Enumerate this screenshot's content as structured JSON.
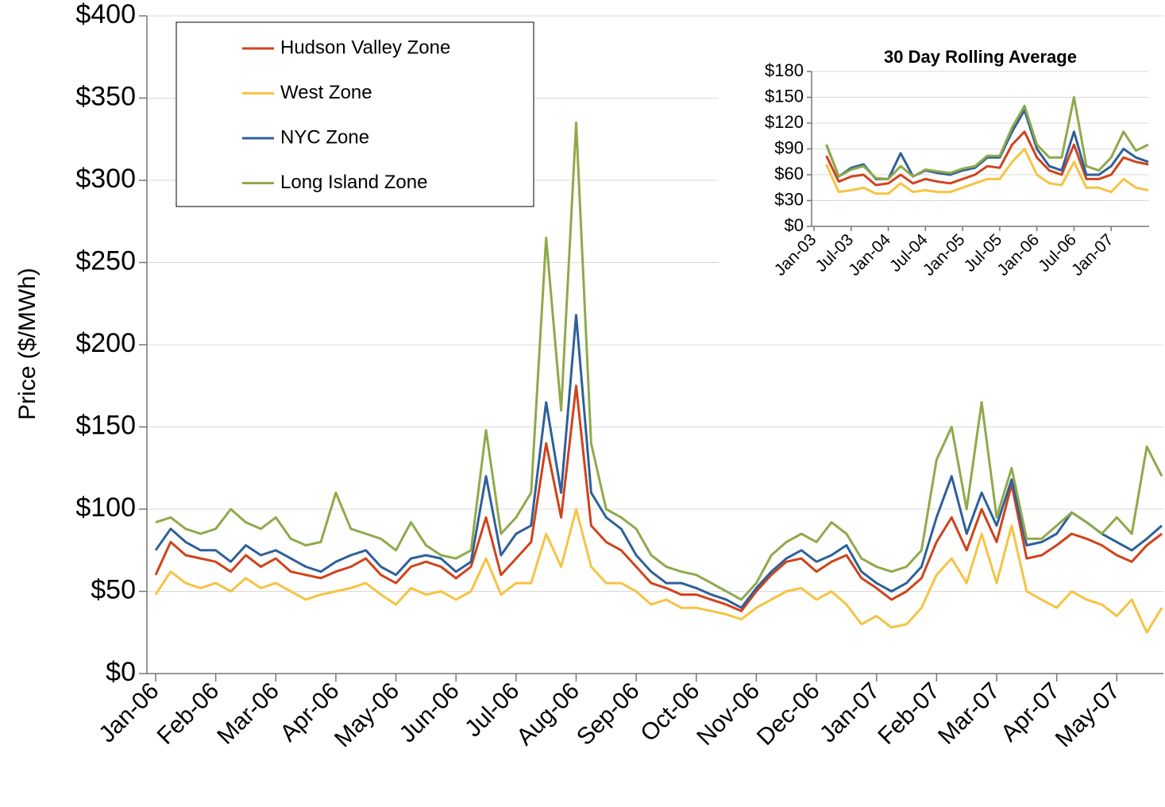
{
  "chart_data": [
    {
      "type": "line",
      "ylabel": "Price ($/MWh)",
      "legend": "top-left",
      "grid": true,
      "categories": [
        "Jan-06",
        null,
        null,
        null,
        "Feb-06",
        null,
        null,
        null,
        "Mar-06",
        null,
        null,
        null,
        "Apr-06",
        null,
        null,
        null,
        "May-06",
        null,
        null,
        null,
        "Jun-06",
        null,
        null,
        null,
        "Jul-06",
        null,
        null,
        null,
        "Aug-06",
        null,
        null,
        null,
        "Sep-06",
        null,
        null,
        null,
        "Oct-06",
        null,
        null,
        null,
        "Nov-06",
        null,
        null,
        null,
        "Dec-06",
        null,
        null,
        null,
        "Jan-07",
        null,
        null,
        null,
        "Feb-07",
        null,
        null,
        null,
        "Mar-07",
        null,
        null,
        null,
        "Apr-07",
        null,
        null,
        null,
        "May-07",
        null,
        null,
        null
      ],
      "ylim": [
        0,
        400
      ],
      "yticks": [
        {
          "value": 0,
          "label": "$0"
        },
        {
          "value": 50,
          "label": "$50"
        },
        {
          "value": 100,
          "label": "$100"
        },
        {
          "value": 150,
          "label": "$150"
        },
        {
          "value": 200,
          "label": "$200"
        },
        {
          "value": 250,
          "label": "$250"
        },
        {
          "value": 300,
          "label": "$300"
        },
        {
          "value": 350,
          "label": "$350"
        },
        {
          "value": 400,
          "label": "$400"
        }
      ],
      "series": [
        {
          "name": "Hudson Valley Zone",
          "color": "#d0431c",
          "values": [
            60,
            80,
            72,
            70,
            68,
            62,
            72,
            65,
            70,
            62,
            60,
            58,
            62,
            65,
            70,
            60,
            55,
            65,
            68,
            65,
            58,
            65,
            95,
            60,
            70,
            80,
            140,
            95,
            175,
            90,
            80,
            75,
            65,
            55,
            52,
            48,
            48,
            45,
            42,
            38,
            50,
            60,
            68,
            70,
            62,
            68,
            72,
            58,
            52,
            45,
            50,
            58,
            80,
            95,
            75,
            100,
            80,
            115,
            70,
            72,
            78,
            85,
            82,
            78,
            72,
            68,
            78,
            85
          ]
        },
        {
          "name": "West Zone",
          "color": "#f6c342",
          "values": [
            48,
            62,
            55,
            52,
            55,
            50,
            58,
            52,
            55,
            50,
            45,
            48,
            50,
            52,
            55,
            48,
            42,
            52,
            48,
            50,
            45,
            50,
            70,
            48,
            55,
            55,
            85,
            65,
            100,
            65,
            55,
            55,
            50,
            42,
            45,
            40,
            40,
            38,
            36,
            33,
            40,
            45,
            50,
            52,
            45,
            50,
            42,
            30,
            35,
            28,
            30,
            40,
            60,
            70,
            55,
            85,
            55,
            90,
            50,
            45,
            40,
            50,
            45,
            42,
            35,
            45,
            25,
            40
          ]
        },
        {
          "name": "NYC Zone",
          "color": "#2e6099",
          "values": [
            75,
            88,
            80,
            75,
            75,
            68,
            78,
            72,
            75,
            70,
            65,
            62,
            68,
            72,
            75,
            65,
            60,
            70,
            72,
            70,
            62,
            68,
            120,
            72,
            85,
            90,
            165,
            110,
            218,
            110,
            95,
            88,
            72,
            62,
            55,
            55,
            52,
            48,
            45,
            40,
            52,
            62,
            70,
            75,
            68,
            72,
            78,
            62,
            55,
            50,
            55,
            65,
            95,
            120,
            85,
            110,
            90,
            118,
            78,
            80,
            85,
            98,
            92,
            85,
            80,
            75,
            82,
            90
          ]
        },
        {
          "name": "Long Island Zone",
          "color": "#8fa94a",
          "values": [
            92,
            95,
            88,
            85,
            88,
            100,
            92,
            88,
            95,
            82,
            78,
            80,
            110,
            88,
            85,
            82,
            75,
            92,
            78,
            72,
            70,
            75,
            148,
            85,
            95,
            110,
            265,
            160,
            335,
            140,
            100,
            95,
            88,
            72,
            65,
            62,
            60,
            55,
            50,
            45,
            55,
            72,
            80,
            85,
            80,
            92,
            85,
            70,
            65,
            62,
            65,
            75,
            130,
            150,
            100,
            165,
            95,
            125,
            82,
            82,
            90,
            98,
            92,
            85,
            95,
            85,
            138,
            120
          ]
        }
      ]
    },
    {
      "type": "line",
      "title": "30 Day Rolling Average",
      "grid": true,
      "categories": [
        "Jan-03",
        null,
        null,
        "Jul-03",
        null,
        null,
        "Jan-04",
        null,
        null,
        "Jul-04",
        null,
        null,
        "Jan-05",
        null,
        null,
        "Jul-05",
        null,
        null,
        "Jan-06",
        null,
        null,
        "Jul-06",
        null,
        null,
        "Jan-07",
        null,
        null,
        null
      ],
      "ylim": [
        0,
        180
      ],
      "yticks": [
        {
          "value": 0,
          "label": "$0"
        },
        {
          "value": 30,
          "label": "$30"
        },
        {
          "value": 60,
          "label": "$60"
        },
        {
          "value": 90,
          "label": "$90"
        },
        {
          "value": 120,
          "label": "$120"
        },
        {
          "value": 150,
          "label": "$150"
        },
        {
          "value": 180,
          "label": "$180"
        }
      ],
      "series": [
        {
          "color": "#d0431c",
          "values": [
            null,
            82,
            52,
            58,
            60,
            48,
            50,
            60,
            50,
            55,
            52,
            50,
            55,
            60,
            70,
            68,
            95,
            110,
            80,
            65,
            60,
            95,
            55,
            55,
            60,
            80,
            75,
            72
          ]
        },
        {
          "color": "#f6c342",
          "values": [
            null,
            72,
            40,
            42,
            45,
            38,
            38,
            50,
            40,
            42,
            40,
            40,
            45,
            50,
            55,
            55,
            75,
            90,
            60,
            50,
            48,
            75,
            45,
            45,
            40,
            55,
            45,
            42
          ]
        },
        {
          "color": "#2e6099",
          "values": [
            null,
            95,
            58,
            68,
            72,
            55,
            55,
            85,
            58,
            65,
            62,
            60,
            65,
            68,
            80,
            80,
            110,
            135,
            90,
            70,
            65,
            110,
            60,
            60,
            70,
            90,
            80,
            75
          ]
        },
        {
          "color": "#8fa94a",
          "values": [
            null,
            95,
            58,
            66,
            70,
            56,
            55,
            70,
            58,
            66,
            64,
            62,
            67,
            70,
            82,
            82,
            115,
            140,
            95,
            80,
            80,
            150,
            70,
            65,
            80,
            110,
            88,
            95
          ]
        }
      ]
    }
  ]
}
